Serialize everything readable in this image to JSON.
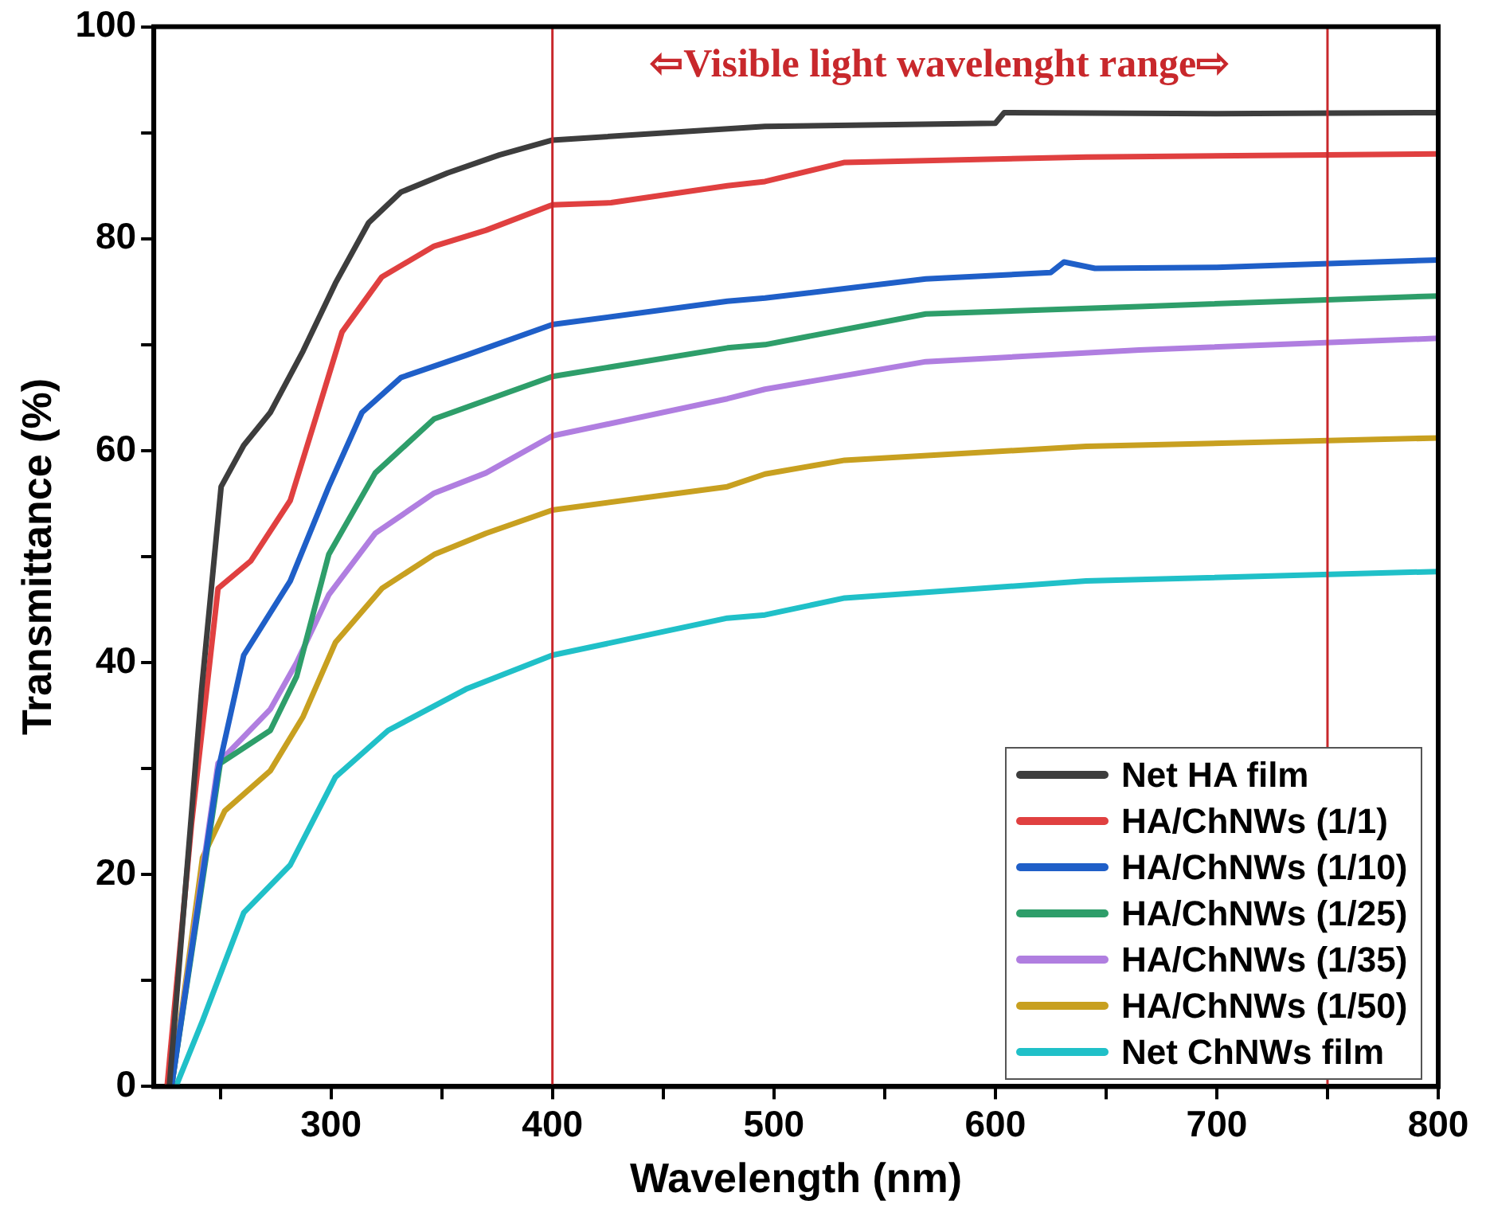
{
  "chart_data": {
    "type": "line",
    "xlabel": "Wavelength (nm)",
    "ylabel": "Transmittance (%)",
    "xlim": [
      220,
      800
    ],
    "xticks": [
      {
        "value": 250,
        "label": null
      },
      300,
      {
        "value": 350,
        "label": null
      },
      400,
      {
        "value": 450,
        "label": null
      },
      500,
      {
        "value": 550,
        "label": null
      },
      600,
      {
        "value": 650,
        "label": null
      },
      700,
      {
        "value": 750,
        "label": null
      },
      800
    ],
    "ylim": [
      0,
      100
    ],
    "yticks": [
      0,
      {
        "value": 10,
        "label": null
      },
      20,
      {
        "value": 30,
        "label": null
      },
      40,
      {
        "value": 50,
        "label": null
      },
      60,
      {
        "value": 70,
        "label": null
      },
      80,
      {
        "value": 90,
        "label": null
      },
      100
    ],
    "grid": false,
    "legend": "bottom right",
    "marker": "none",
    "line_style": "solid",
    "ref_lines": [
      {
        "axis": "x",
        "value": 400,
        "color": "#c8282c"
      },
      {
        "axis": "x",
        "value": 750,
        "color": "#c8282c"
      }
    ],
    "annotations": [
      "⇦Visible light wavelenght range⇨"
    ],
    "series": [
      {
        "name": "Net HA film",
        "color": "#3d3d3d",
        "x": [
          227,
          241.6,
          250.4,
          260.6,
          272.6,
          287.4,
          302,
          317,
          331.6,
          352.6,
          376,
          400,
          496,
          600,
          604,
          700,
          800
        ],
        "values": [
          0,
          37.5,
          56.6,
          60.5,
          63.6,
          69.4,
          75.8,
          81.5,
          84.4,
          86.2,
          87.9,
          89.3,
          90.6,
          90.9,
          91.9,
          91.8,
          91.9
        ]
      },
      {
        "name": "HA/ChNWs (1/1)",
        "color": "#e04040",
        "x": [
          226,
          237,
          249,
          263.8,
          281.6,
          293,
          305,
          323,
          346.6,
          370,
          400,
          426.5,
          479,
          496,
          532,
          641,
          800
        ],
        "values": [
          0,
          24.7,
          47,
          49.6,
          55.3,
          63,
          71.2,
          76.4,
          79.3,
          80.8,
          83.2,
          83.4,
          85,
          85.4,
          87.2,
          87.7,
          88
        ]
      },
      {
        "name": "HA/ChNWs (1/10)",
        "color": "#1f5fc8",
        "x": [
          228,
          249,
          260.6,
          281.6,
          299,
          314,
          331.6,
          361,
          400,
          479,
          496,
          568.6,
          625,
          631,
          645,
          700,
          800
        ],
        "values": [
          0,
          29.8,
          40.7,
          47.7,
          56.6,
          63.6,
          66.9,
          69,
          71.9,
          74.1,
          74.4,
          76.2,
          76.8,
          77.8,
          77.2,
          77.3,
          78
        ]
      },
      {
        "name": "HA/ChNWs (1/25)",
        "color": "#2e9e6a",
        "x": [
          228,
          250,
          272.6,
          284.5,
          299,
          320,
          346.6,
          400,
          479,
          496,
          568.6,
          665,
          800
        ],
        "values": [
          0,
          30.5,
          33.6,
          38.7,
          50.2,
          57.9,
          63,
          67,
          69.7,
          70,
          72.9,
          73.6,
          74.6
        ]
      },
      {
        "name": "HA/ChNWs (1/35)",
        "color": "#b07ee0",
        "x": [
          228,
          249,
          272.6,
          284.5,
          299,
          320,
          346.6,
          370,
          400,
          479,
          496,
          568.6,
          665,
          800
        ],
        "values": [
          0,
          30.5,
          35.6,
          40,
          46.4,
          52.2,
          56,
          57.9,
          61.4,
          64.9,
          65.8,
          68.4,
          69.5,
          70.6
        ]
      },
      {
        "name": "HA/ChNWs (1/50)",
        "color": "#c8a020",
        "x": [
          228,
          242,
          252,
          272.6,
          287.4,
          302,
          323,
          346.6,
          370,
          400,
          479,
          496,
          532,
          641,
          800
        ],
        "values": [
          0,
          21.6,
          26,
          29.8,
          34.9,
          41.9,
          47,
          50.2,
          52.2,
          54.4,
          56.6,
          57.8,
          59.1,
          60.4,
          61.2
        ]
      },
      {
        "name": "Net ChNWs film",
        "color": "#20c0c8",
        "x": [
          230,
          242,
          260.6,
          281.6,
          302,
          325.8,
          361,
          400,
          479,
          496,
          532,
          641,
          800
        ],
        "values": [
          0,
          6.2,
          16.4,
          20.9,
          29.2,
          33.6,
          37.5,
          40.7,
          44.2,
          44.5,
          46.1,
          47.7,
          48.6
        ]
      }
    ]
  }
}
